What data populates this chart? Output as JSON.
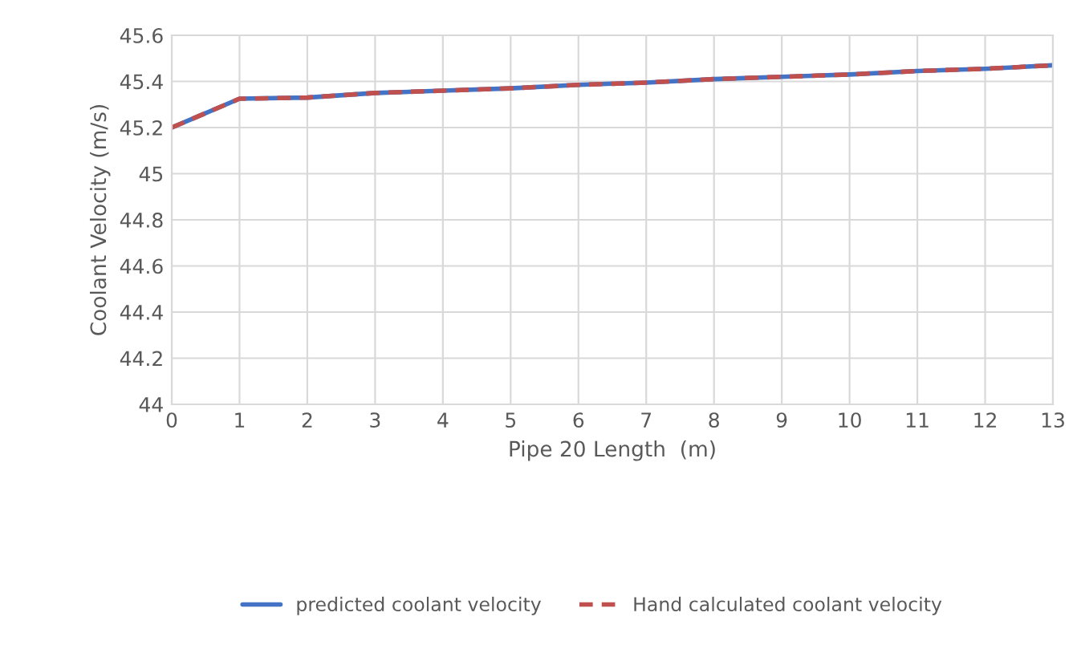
{
  "chart_data": {
    "type": "line",
    "xlabel": "Pipe 20 Length  (m)",
    "ylabel": "Coolant Velocity (m/s)",
    "x": [
      0,
      1,
      2,
      3,
      4,
      5,
      6,
      7,
      8,
      9,
      10,
      11,
      12,
      13
    ],
    "series": [
      {
        "name": "predicted coolant velocity",
        "color": "#4472c4",
        "line_style": "solid",
        "values": [
          45.2,
          45.325,
          45.33,
          45.35,
          45.36,
          45.37,
          45.385,
          45.395,
          45.41,
          45.42,
          45.43,
          45.445,
          45.455,
          45.47
        ]
      },
      {
        "name": "Hand calculated coolant velocity",
        "color": "#c0504d",
        "line_style": "dashed",
        "values": [
          45.2,
          45.325,
          45.33,
          45.35,
          45.36,
          45.37,
          45.385,
          45.395,
          45.41,
          45.42,
          45.43,
          45.445,
          45.455,
          45.47
        ]
      }
    ],
    "xlim": [
      0,
      13
    ],
    "xticks": [
      0,
      1,
      2,
      3,
      4,
      5,
      6,
      7,
      8,
      9,
      10,
      11,
      12,
      13
    ],
    "ylim": [
      44,
      45.6
    ],
    "yticks": [
      {
        "value": 44,
        "label": "44"
      },
      {
        "value": 44.2,
        "label": "44.2"
      },
      {
        "value": 44.4,
        "label": "44.4"
      },
      {
        "value": 44.6,
        "label": "44.6"
      },
      {
        "value": 44.8,
        "label": "44.8"
      },
      {
        "value": 45,
        "label": "45"
      },
      {
        "value": 45.2,
        "label": "45.2"
      },
      {
        "value": 45.4,
        "label": "45.4"
      },
      {
        "value": 45.6,
        "label": "45.6"
      }
    ],
    "grid": true,
    "legend": "bottom",
    "marker": "none"
  }
}
